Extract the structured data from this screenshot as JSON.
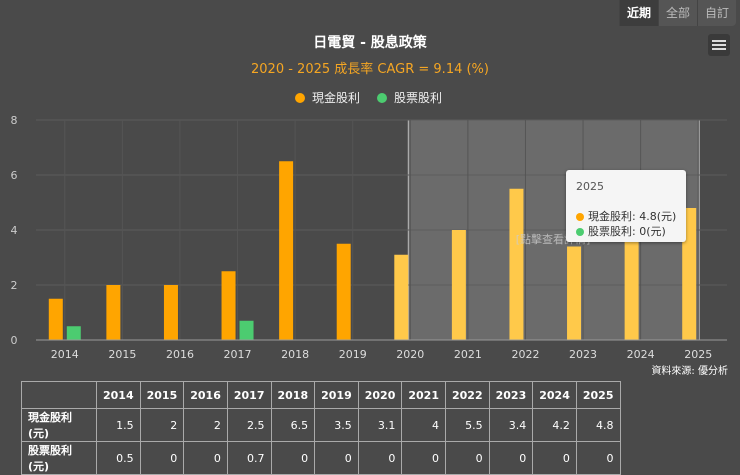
{
  "buttons": [
    {
      "label": "近期",
      "active": true
    },
    {
      "label": "全部",
      "active": false
    },
    {
      "label": "自訂",
      "active": false
    }
  ],
  "source": "資料來源: 優分析",
  "overlay_text": "[點擊查看詳情]",
  "colors": {
    "cash": "#ffa500",
    "stock": "#4ccc70",
    "highlight_cash": "#ffc94a"
  },
  "chart_data": {
    "type": "bar",
    "title": "日電貿 - 股息政策",
    "subtitle": "2020 - 2025 成長率 CAGR = 9.14 (%)",
    "categories": [
      "2014",
      "2015",
      "2016",
      "2017",
      "2018",
      "2019",
      "2020",
      "2021",
      "2022",
      "2023",
      "2024",
      "2025"
    ],
    "series": [
      {
        "name": "現金股利",
        "values": [
          1.5,
          2,
          2,
          2.5,
          6.5,
          3.5,
          3.1,
          4,
          5.5,
          3.4,
          4.2,
          4.8
        ]
      },
      {
        "name": "股票股利",
        "values": [
          0.5,
          0,
          0,
          0.7,
          0,
          0,
          0,
          0,
          0,
          0,
          0,
          0
        ]
      }
    ],
    "ylim": [
      0,
      8
    ],
    "yticks": [
      0,
      2,
      4,
      6,
      8
    ],
    "highlight_range": [
      "2020",
      "2025"
    ],
    "legend_position": "top-center",
    "grid": true
  },
  "table": {
    "rows": [
      {
        "label": "現金股利(元)",
        "values": [
          "1.5",
          "2",
          "2",
          "2.5",
          "6.5",
          "3.5",
          "3.1",
          "4",
          "5.5",
          "3.4",
          "4.2",
          "4.8"
        ]
      },
      {
        "label": "股票股利(元)",
        "values": [
          "0.5",
          "0",
          "0",
          "0.7",
          "0",
          "0",
          "0",
          "0",
          "0",
          "0",
          "0",
          "0"
        ]
      }
    ]
  },
  "tooltip": {
    "title": "2025",
    "rows": [
      {
        "label": "現金股利: 4.8(元)"
      },
      {
        "label": "股票股利: 0(元)"
      }
    ]
  }
}
